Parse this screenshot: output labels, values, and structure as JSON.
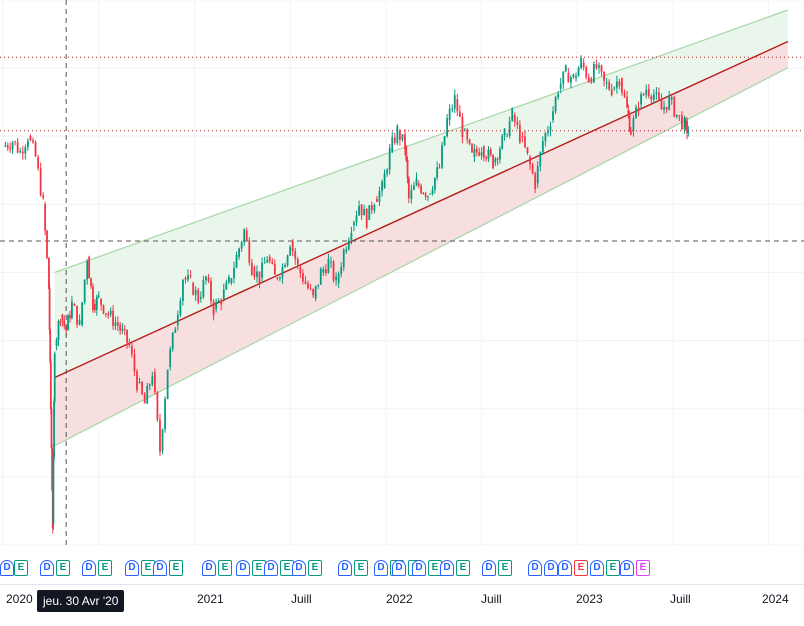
{
  "chart_data": {
    "type": "line",
    "x_ticks": [
      "2020",
      "2021",
      "Juill",
      "2022",
      "Juill",
      "2023",
      "Juill",
      "2024"
    ],
    "crosshair_label": "jeu. 30 Avr '20",
    "colors": {
      "up": "#089981",
      "down": "#f23645",
      "channel_upper": "#a5d6a7",
      "channel_mid": "#b71c1c",
      "fill_upper": "#e8f5e9",
      "fill_lower": "#f7dcdc"
    },
    "price_path": [
      [
        2020.0,
        0.74
      ],
      [
        2020.05,
        0.75
      ],
      [
        2020.09,
        0.73
      ],
      [
        2020.13,
        0.76
      ],
      [
        2020.17,
        0.72
      ],
      [
        2020.21,
        0.63
      ],
      [
        2020.24,
        0.47
      ],
      [
        2020.25,
        0.24
      ],
      [
        2020.26,
        0.02
      ],
      [
        2020.27,
        0.36
      ],
      [
        2020.3,
        0.42
      ],
      [
        2020.33,
        0.39
      ],
      [
        2020.36,
        0.44
      ],
      [
        2020.4,
        0.4
      ],
      [
        2020.44,
        0.53
      ],
      [
        2020.47,
        0.44
      ],
      [
        2020.5,
        0.45
      ],
      [
        2020.55,
        0.42
      ],
      [
        2020.6,
        0.4
      ],
      [
        2020.66,
        0.36
      ],
      [
        2020.7,
        0.29
      ],
      [
        2020.74,
        0.25
      ],
      [
        2020.78,
        0.31
      ],
      [
        2020.82,
        0.16
      ],
      [
        2020.86,
        0.32
      ],
      [
        2020.9,
        0.4
      ],
      [
        2020.94,
        0.49
      ],
      [
        2020.98,
        0.48
      ],
      [
        2021.02,
        0.45
      ],
      [
        2021.06,
        0.49
      ],
      [
        2021.1,
        0.43
      ],
      [
        2021.14,
        0.45
      ],
      [
        2021.18,
        0.48
      ],
      [
        2021.22,
        0.53
      ],
      [
        2021.26,
        0.58
      ],
      [
        2021.3,
        0.51
      ],
      [
        2021.34,
        0.49
      ],
      [
        2021.38,
        0.53
      ],
      [
        2021.42,
        0.49
      ],
      [
        2021.46,
        0.51
      ],
      [
        2021.5,
        0.56
      ],
      [
        2021.54,
        0.51
      ],
      [
        2021.58,
        0.48
      ],
      [
        2021.62,
        0.45
      ],
      [
        2021.66,
        0.5
      ],
      [
        2021.7,
        0.52
      ],
      [
        2021.74,
        0.48
      ],
      [
        2021.78,
        0.54
      ],
      [
        2021.82,
        0.59
      ],
      [
        2021.86,
        0.63
      ],
      [
        2021.9,
        0.6
      ],
      [
        2021.94,
        0.64
      ],
      [
        2021.98,
        0.66
      ],
      [
        2022.02,
        0.73
      ],
      [
        2022.06,
        0.77
      ],
      [
        2022.1,
        0.74
      ],
      [
        2022.12,
        0.64
      ],
      [
        2022.16,
        0.67
      ],
      [
        2022.22,
        0.65
      ],
      [
        2022.28,
        0.7
      ],
      [
        2022.32,
        0.79
      ],
      [
        2022.36,
        0.83
      ],
      [
        2022.4,
        0.77
      ],
      [
        2022.45,
        0.72
      ],
      [
        2022.5,
        0.74
      ],
      [
        2022.56,
        0.71
      ],
      [
        2022.62,
        0.76
      ],
      [
        2022.66,
        0.8
      ],
      [
        2022.7,
        0.76
      ],
      [
        2022.74,
        0.72
      ],
      [
        2022.78,
        0.67
      ],
      [
        2022.82,
        0.75
      ],
      [
        2022.86,
        0.79
      ],
      [
        2022.9,
        0.85
      ],
      [
        2022.94,
        0.88
      ],
      [
        2022.98,
        0.87
      ],
      [
        2023.02,
        0.9
      ],
      [
        2023.06,
        0.87
      ],
      [
        2023.1,
        0.89
      ],
      [
        2023.14,
        0.86
      ],
      [
        2023.18,
        0.85
      ],
      [
        2023.22,
        0.87
      ],
      [
        2023.26,
        0.81
      ],
      [
        2023.28,
        0.77
      ],
      [
        2023.32,
        0.82
      ],
      [
        2023.36,
        0.85
      ],
      [
        2023.4,
        0.84
      ],
      [
        2023.44,
        0.81
      ],
      [
        2023.48,
        0.83
      ],
      [
        2023.52,
        0.8
      ],
      [
        2023.56,
        0.78
      ],
      [
        2023.58,
        0.77
      ]
    ],
    "channel": {
      "upper": [
        [
          2020.27,
          0.5
        ],
        [
          2024.1,
          1.0
        ]
      ],
      "middle": [
        [
          2020.27,
          0.3
        ],
        [
          2024.1,
          0.94
        ]
      ],
      "lower": [
        [
          2020.27,
          0.17
        ],
        [
          2024.1,
          0.89
        ]
      ]
    },
    "horizontal_lines": [
      {
        "y": 0.91,
        "style": "dotted",
        "color": "#b71c1c"
      },
      {
        "y": 0.77,
        "style": "dotted",
        "color": "#b71c1c"
      },
      {
        "y": 0.56,
        "style": "dashed",
        "color": "#555555"
      }
    ],
    "crosshair_x": 2020.33,
    "x_range": [
      2020.0,
      2024.2
    ],
    "y_range": [
      0.0,
      1.0
    ]
  },
  "events": [
    "D",
    "E",
    "D",
    "E",
    "D",
    "E",
    "D",
    "E",
    "D",
    "E",
    "D",
    "E",
    "D",
    "E",
    "D",
    "E",
    "D",
    "E",
    "D",
    "E",
    "D",
    "E",
    "D",
    "E",
    "D",
    "E",
    "D",
    "E",
    "D",
    "E",
    "D",
    "D",
    "D",
    "E",
    "D",
    "E",
    "D",
    "E"
  ],
  "event_kinds": [
    "d",
    "e",
    "d",
    "e",
    "d",
    "e",
    "d",
    "e",
    "d",
    "e",
    "d",
    "e",
    "d",
    "e",
    "d",
    "e",
    "d",
    "e",
    "d",
    "e",
    "d",
    "e",
    "d",
    "e",
    "d",
    "e",
    "d",
    "e",
    "d",
    "e",
    "d",
    "d",
    "d",
    "e-red",
    "d",
    "e",
    "d",
    "e-pink"
  ]
}
